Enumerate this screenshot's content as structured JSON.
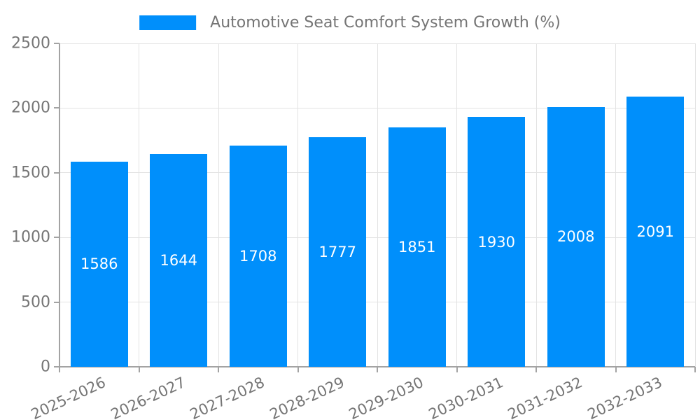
{
  "chart_data": {
    "type": "bar",
    "title": "Automotive Seat Comfort System Growth (%)",
    "legend": {
      "position": "top",
      "label": "Automotive Seat Comfort System Growth (%)"
    },
    "categories": [
      "2025-2026",
      "2026-2027",
      "2027-2028",
      "2028-2029",
      "2029-2030",
      "2030-2031",
      "2031-2032",
      "2032-2033"
    ],
    "series": [
      {
        "name": "Automotive Seat Comfort System Growth (%)",
        "values": [
          1586,
          1644,
          1708,
          1777,
          1851,
          1930,
          2008,
          2091
        ]
      }
    ],
    "value_labels": [
      "1586",
      "1644",
      "1708",
      "1777",
      "1851",
      "1930",
      "2008",
      "2091"
    ],
    "xlabel": "",
    "ylabel": "",
    "ylim": [
      0,
      2500
    ],
    "yticks": [
      0,
      500,
      1000,
      1500,
      2000,
      2500
    ],
    "grid": "on",
    "x_label_rotation_deg": -25
  },
  "colors": {
    "bar": "#008FFB",
    "grid_line": "#e3e3e3",
    "axis_line": "#a3a3a3",
    "tick_text": "#757575",
    "value_label_text": "#ffffff",
    "background": "#ffffff"
  }
}
